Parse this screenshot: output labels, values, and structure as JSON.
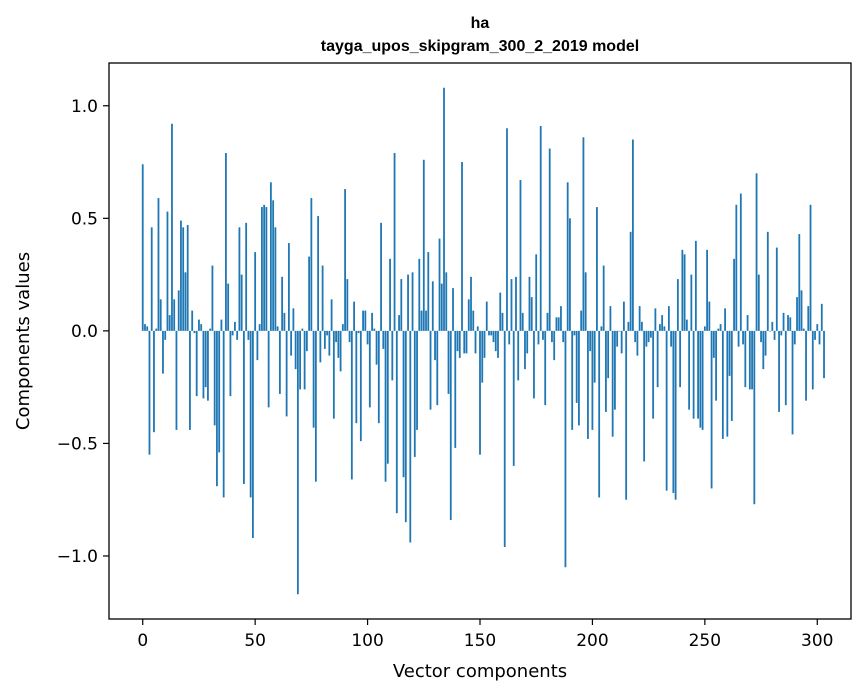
{
  "chart_data": {
    "type": "bar",
    "title": "ha",
    "subtitle": "tayga_upos_skipgram_300_2_2019 model",
    "xlabel": "Vector components",
    "ylabel": "Components values",
    "xlim": [
      -15,
      315
    ],
    "ylim": [
      -1.28,
      1.19
    ],
    "x_ticks": [
      0,
      50,
      100,
      150,
      200,
      250,
      300
    ],
    "x_tick_labels": [
      "0",
      "50",
      "100",
      "150",
      "200",
      "250",
      "300"
    ],
    "y_ticks": [
      -1.0,
      -0.5,
      0.0,
      0.5,
      1.0
    ],
    "y_tick_labels": [
      "−1.0",
      "−0.5",
      "0.0",
      "0.5",
      "1.0"
    ],
    "grid": false,
    "bar_color": "#1f77b4",
    "series": [
      {
        "values": [
          0.74,
          0.03,
          0.02,
          -0.55,
          0.46,
          -0.45,
          0.01,
          0.59,
          0.14,
          -0.19,
          -0.04,
          0.53,
          0.07,
          0.92,
          0.14,
          -0.44,
          0.18,
          0.49,
          0.46,
          0.26,
          0.47,
          -0.44,
          0.09,
          -0.01,
          -0.29,
          0.05,
          0.03,
          -0.3,
          -0.25,
          -0.31,
          0.01,
          0.29,
          -0.42,
          -0.69,
          -0.54,
          0.05,
          -0.74,
          0.79,
          0.21,
          -0.29,
          -0.02,
          0.04,
          -0.04,
          0.46,
          0.25,
          -0.68,
          0.48,
          -0.04,
          -0.74,
          -0.92,
          0.35,
          -0.13,
          0.03,
          0.55,
          0.56,
          0.55,
          -0.34,
          0.66,
          0.58,
          0.46,
          0.02,
          -0.28,
          0.24,
          0.08,
          -0.38,
          0.39,
          -0.11,
          0.1,
          -0.17,
          -1.17,
          -0.26,
          0.01,
          -0.26,
          -0.09,
          0.33,
          0.59,
          -0.43,
          -0.67,
          0.51,
          -0.14,
          0.29,
          -0.08,
          -0.02,
          -0.11,
          0.14,
          -0.39,
          -0.05,
          -0.12,
          -0.18,
          0.03,
          0.63,
          0.23,
          -0.05,
          -0.66,
          0.13,
          -0.41,
          -0.01,
          -0.49,
          0.09,
          0.09,
          -0.06,
          -0.34,
          0.08,
          0.01,
          -0.15,
          -0.41,
          0.48,
          -0.08,
          -0.67,
          -0.59,
          0.32,
          -0.22,
          0.79,
          -0.81,
          0.07,
          0.23,
          -0.65,
          -0.85,
          0.25,
          -0.94,
          0.26,
          -0.56,
          -0.44,
          0.32,
          0.09,
          0.76,
          0.09,
          0.35,
          -0.35,
          0.22,
          -0.13,
          -0.33,
          0.41,
          0.21,
          1.08,
          0.26,
          -0.28,
          -0.84,
          0.19,
          -0.52,
          -0.09,
          -0.12,
          0.75,
          -0.1,
          -0.1,
          0.14,
          0.24,
          0.09,
          -0.1,
          0.02,
          -0.55,
          -0.23,
          -0.12,
          0.13,
          -0.02,
          -0.02,
          -0.05,
          -0.09,
          -0.12,
          0.17,
          0.08,
          -0.96,
          0.9,
          -0.06,
          0.23,
          -0.6,
          0.24,
          -0.22,
          0.67,
          0.08,
          -0.17,
          -0.1,
          0.24,
          0.15,
          -0.3,
          0.34,
          -0.06,
          0.91,
          -0.04,
          -0.33,
          0.08,
          0.81,
          -0.05,
          -0.13,
          0.06,
          0.06,
          0.11,
          -0.05,
          -1.05,
          0.66,
          0.5,
          -0.44,
          -0.02,
          -0.32,
          -0.42,
          0.09,
          0.86,
          0.26,
          -0.48,
          -0.09,
          -0.44,
          -0.23,
          0.55,
          -0.74,
          0.02,
          0.29,
          -0.36,
          -0.21,
          0.11,
          -0.47,
          -0.35,
          -0.07,
          0.0,
          -0.1,
          0.13,
          -0.75,
          0.04,
          0.44,
          0.85,
          -0.05,
          -0.11,
          0.11,
          0.04,
          -0.58,
          -0.07,
          -0.05,
          -0.03,
          -0.39,
          0.1,
          -0.25,
          0.03,
          0.07,
          0.02,
          -0.71,
          0.11,
          -0.07,
          -0.72,
          -0.75,
          0.23,
          -0.25,
          0.36,
          0.34,
          0.05,
          -0.35,
          0.25,
          -0.39,
          0.4,
          -0.39,
          -0.43,
          -0.44,
          0.02,
          0.36,
          0.13,
          -0.7,
          -0.12,
          -0.31,
          0.01,
          0.03,
          -0.48,
          0.1,
          -0.47,
          -0.2,
          -0.4,
          0.32,
          0.56,
          -0.07,
          0.61,
          -0.06,
          -0.25,
          0.07,
          -0.26,
          -0.26,
          -0.77,
          0.7,
          0.25,
          -0.05,
          -0.17,
          -0.11,
          0.44,
          0.0,
          0.04,
          -0.04,
          0.37,
          -0.36,
          -0.02,
          0.08,
          -0.33,
          0.07,
          0.06,
          -0.46,
          -0.06,
          0.15,
          0.43,
          0.18,
          0.01,
          -0.31,
          0.11,
          0.56,
          -0.26,
          -0.04,
          0.03,
          -0.06,
          0.12,
          -0.21
        ]
      }
    ]
  }
}
